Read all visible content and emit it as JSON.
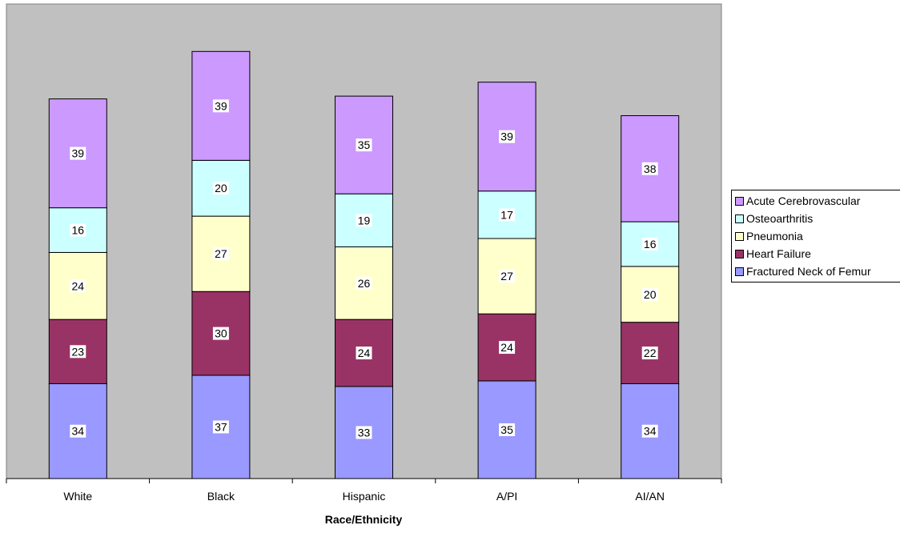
{
  "chart_data": {
    "type": "bar",
    "stacked": true,
    "categories": [
      "White",
      "Black",
      "Hispanic",
      "A/PI",
      "AI/AN"
    ],
    "series": [
      {
        "name": "Fractured Neck of Femur",
        "color": "#9999ff",
        "values": [
          34,
          37,
          33,
          35,
          34
        ]
      },
      {
        "name": "Heart Failure",
        "color": "#993366",
        "values": [
          23,
          30,
          24,
          24,
          22
        ]
      },
      {
        "name": "Pneumonia",
        "color": "#ffffcc",
        "values": [
          24,
          27,
          26,
          27,
          20
        ]
      },
      {
        "name": "Osteoarthritis",
        "color": "#ccffff",
        "values": [
          16,
          20,
          19,
          17,
          16
        ]
      },
      {
        "name": "Acute Cerebrovascular",
        "color": "#cc99ff",
        "values": [
          39,
          39,
          35,
          39,
          38
        ]
      }
    ],
    "legend_order": [
      "Acute Cerebrovascular",
      "Osteoarthritis",
      "Pneumonia",
      "Heart Failure",
      "Fractured Neck of Femur"
    ],
    "title": "",
    "xlabel": "Race/Ethnicity",
    "ylabel": "",
    "ylim": [
      0,
      170
    ],
    "grid": false,
    "legend_position": "right",
    "plot_background": "#c0c0c0"
  }
}
